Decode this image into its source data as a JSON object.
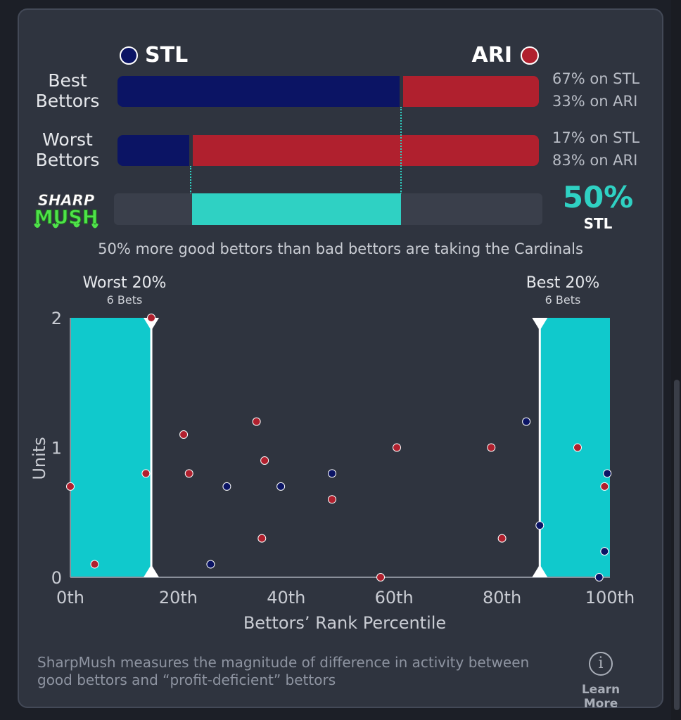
{
  "teams": {
    "left": {
      "abbr": "STL",
      "color": "#0b1464"
    },
    "right": {
      "abbr": "ARI",
      "color": "#b0202e"
    }
  },
  "rows": {
    "best": {
      "label": "Best Bettors",
      "stl_fraction": 0.67,
      "line1": "67% on STL",
      "line2": "33% on ARI"
    },
    "worst": {
      "label": "Worst Bettors",
      "stl_fraction": 0.17,
      "line1": "17% on STL",
      "line2": "83% on ARI"
    }
  },
  "sharpmush": {
    "logo_line1": "SHARP",
    "logo_line2": "MUSH",
    "value": "50%",
    "team": "STL",
    "summary": "50% more good bettors than bad bettors are taking the Cardinals",
    "accent": "#2fd1c3"
  },
  "bands": {
    "worst": {
      "title": "Worst 20%",
      "sub": "6 Bets"
    },
    "best": {
      "title": "Best 20%",
      "sub": "6 Bets"
    }
  },
  "chart_data": {
    "type": "scatter",
    "xlabel": "Bettors’ Rank Percentile",
    "ylabel": "Units",
    "xlim": [
      0,
      100
    ],
    "ylim": [
      0,
      2
    ],
    "x_ticks": [
      "0th",
      "20th",
      "40th",
      "60th",
      "80th",
      "100th"
    ],
    "x_tick_values": [
      0,
      20,
      40,
      60,
      80,
      100
    ],
    "y_ticks": [
      "0",
      "1",
      "2"
    ],
    "y_tick_values": [
      0,
      1,
      2
    ],
    "highlight_bands": [
      [
        0,
        15
      ],
      [
        87,
        100
      ]
    ],
    "series": [
      {
        "name": "STL",
        "color": "#0b1464",
        "points": [
          [
            26,
            0.1
          ],
          [
            29,
            0.7
          ],
          [
            39,
            0.7
          ],
          [
            48.5,
            0.8
          ],
          [
            84.5,
            1.2
          ],
          [
            87,
            0.4
          ],
          [
            99,
            0.2
          ],
          [
            98,
            0.0
          ],
          [
            99.5,
            0.8
          ]
        ]
      },
      {
        "name": "ARI",
        "color": "#b0202e",
        "points": [
          [
            0,
            0.7
          ],
          [
            4.5,
            0.1
          ],
          [
            14,
            0.8
          ],
          [
            15,
            2.0
          ],
          [
            21,
            1.1
          ],
          [
            22,
            0.8
          ],
          [
            34.5,
            1.2
          ],
          [
            36,
            0.9
          ],
          [
            35.5,
            0.3
          ],
          [
            48.5,
            0.6
          ],
          [
            57.5,
            0.0
          ],
          [
            60.5,
            1.0
          ],
          [
            78,
            1.0
          ],
          [
            80,
            0.3
          ],
          [
            94,
            1.0
          ],
          [
            99,
            0.7
          ]
        ]
      }
    ]
  },
  "footer": {
    "text": "SharpMush measures the magnitude of difference in activity between good bettors and “profit-deficient” bettors",
    "learn_more": "Learn More"
  }
}
